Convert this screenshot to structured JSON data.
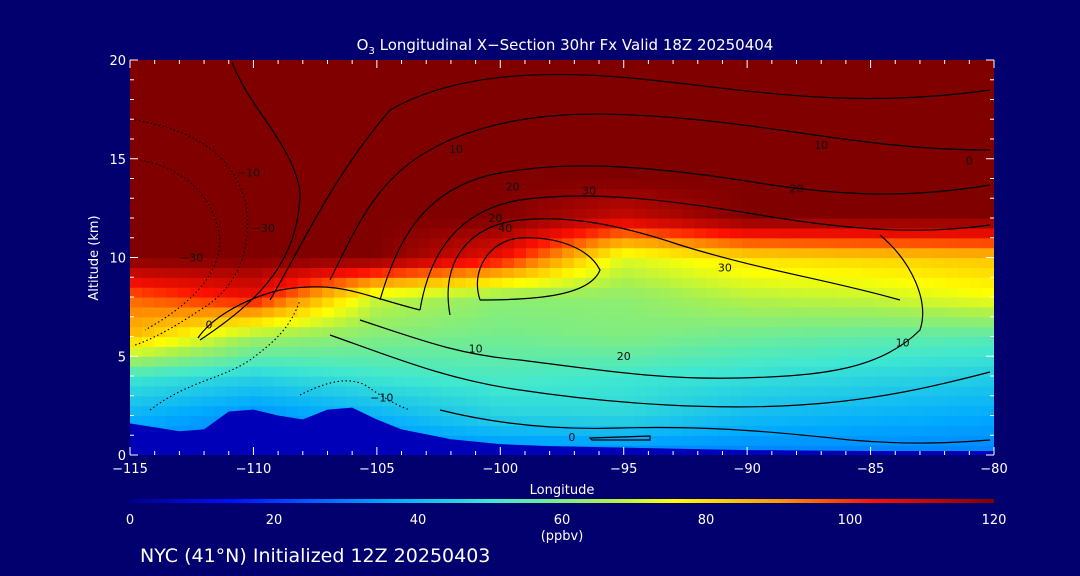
{
  "chart_data": {
    "type": "heatmap",
    "title": "O3 Longitudinal X-Section 30hr  Fx Valid 18Z 20250404",
    "xlabel": "Longitude",
    "ylabel": "Altitude (km)",
    "xlim": [
      -115,
      -80
    ],
    "ylim": [
      0,
      20
    ],
    "x_ticks": [
      -115,
      -110,
      -105,
      -100,
      -95,
      -90,
      -85,
      -80
    ],
    "x_tick_labels": [
      "−115",
      "−110",
      "−105",
      "−100",
      "−95",
      "−90",
      "−85",
      "−80"
    ],
    "y_ticks": [
      0,
      5,
      10,
      15,
      20
    ],
    "y_tick_labels": [
      "0",
      "5",
      "10",
      "15",
      "20"
    ],
    "colorbar": {
      "label": "(ppbv)",
      "range": [
        0,
        120
      ],
      "ticks": [
        0,
        20,
        40,
        60,
        80,
        100,
        120
      ],
      "tick_labels": [
        "0",
        "20",
        "40",
        "60",
        "80",
        "100",
        "120"
      ]
    },
    "terrain_profile": {
      "lon": [
        -115,
        -113,
        -112,
        -111,
        -110,
        -109,
        -108,
        -107,
        -106,
        -105,
        -104,
        -102,
        -100,
        -98,
        -96,
        -94,
        -92,
        -90,
        -85,
        -80
      ],
      "alt": [
        1.6,
        1.2,
        1.3,
        2.2,
        2.3,
        2.0,
        1.8,
        2.3,
        2.4,
        1.8,
        1.3,
        0.8,
        0.55,
        0.45,
        0.4,
        0.35,
        0.3,
        0.25,
        0.2,
        0.2
      ]
    },
    "ozone_field": {
      "lon": [
        -115,
        -110,
        -105,
        -100,
        -95,
        -90,
        -85,
        -80
      ],
      "alt": [
        0,
        2,
        4,
        6,
        8,
        10,
        12,
        14,
        16,
        18,
        20
      ],
      "values": [
        [
          30,
          30,
          30,
          30,
          30,
          30,
          30,
          30
        ],
        [
          38,
          32,
          38,
          45,
          46,
          40,
          38,
          36
        ],
        [
          50,
          45,
          50,
          52,
          50,
          48,
          46,
          44
        ],
        [
          85,
          65,
          60,
          58,
          60,
          57,
          55,
          54
        ],
        [
          95,
          105,
          70,
          62,
          62,
          68,
          70,
          75
        ],
        [
          120,
          120,
          120,
          105,
          72,
          80,
          82,
          84
        ],
        [
          120,
          120,
          120,
          120,
          110,
          120,
          120,
          120
        ],
        [
          120,
          120,
          120,
          120,
          120,
          120,
          120,
          120
        ],
        [
          120,
          120,
          120,
          120,
          120,
          120,
          120,
          120
        ],
        [
          120,
          120,
          120,
          120,
          120,
          120,
          120,
          120
        ],
        [
          120,
          120,
          120,
          120,
          120,
          120,
          120,
          120
        ]
      ]
    },
    "contour_labels": [
      {
        "text": "10",
        "lon": -101.8,
        "alt": 15.3,
        "style": "solid"
      },
      {
        "text": "10",
        "lon": -87.0,
        "alt": 15.5,
        "style": "solid"
      },
      {
        "text": "0",
        "lon": -81.0,
        "alt": 14.7,
        "style": "solid"
      },
      {
        "text": "20",
        "lon": -99.5,
        "alt": 13.4,
        "style": "solid"
      },
      {
        "text": "30",
        "lon": -96.4,
        "alt": 13.2,
        "style": "solid"
      },
      {
        "text": "20",
        "lon": -88.0,
        "alt": 13.3,
        "style": "solid"
      },
      {
        "text": "20",
        "lon": -100.2,
        "alt": 11.8,
        "style": "solid"
      },
      {
        "text": "40",
        "lon": -99.8,
        "alt": 11.3,
        "style": "solid"
      },
      {
        "text": "30",
        "lon": -90.9,
        "alt": 9.3,
        "style": "solid"
      },
      {
        "text": "10",
        "lon": -101.0,
        "alt": 5.2,
        "style": "solid"
      },
      {
        "text": "20",
        "lon": -95.0,
        "alt": 4.8,
        "style": "solid"
      },
      {
        "text": "10",
        "lon": -83.7,
        "alt": 5.5,
        "style": "solid"
      },
      {
        "text": "0",
        "lon": -111.8,
        "alt": 6.4,
        "style": "solid"
      },
      {
        "text": "0",
        "lon": -97.1,
        "alt": 0.7,
        "style": "solid"
      },
      {
        "text": "−10",
        "lon": -110.2,
        "alt": 14.1,
        "style": "dotted"
      },
      {
        "text": "−30",
        "lon": -109.6,
        "alt": 11.3,
        "style": "dotted"
      },
      {
        "text": "−30",
        "lon": -112.5,
        "alt": 9.8,
        "style": "dotted"
      },
      {
        "text": "−10",
        "lon": -104.8,
        "alt": 2.7,
        "style": "dotted"
      }
    ]
  },
  "title_main": "O",
  "title_sub": "3",
  "title_rest": " Longitudinal X−Section 30hr  Fx Valid 18Z 20250404",
  "footer": "NYC (41°N) Initialized 12Z 20250403",
  "colors": {
    "background": "#02006e",
    "stratosphere": "#800000",
    "terrain": "#0000b8",
    "contour": "#000000",
    "text": "#ffffff"
  }
}
